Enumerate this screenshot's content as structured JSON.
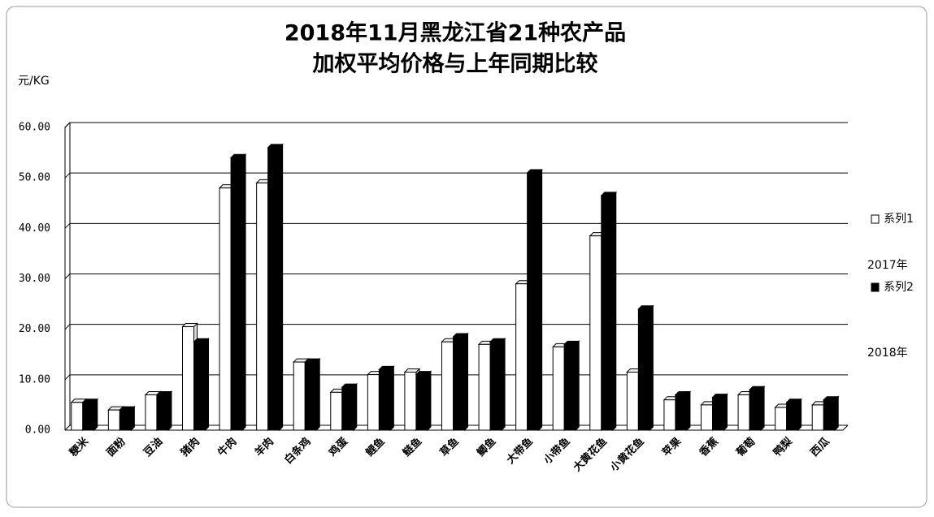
{
  "chart_data": {
    "type": "bar3d",
    "title": "2018年11月黑龙江省21种农产品",
    "subtitle": "加权平均价格与上年同期比较",
    "y_label": "元/KG",
    "categories": [
      "粳米",
      "面粉",
      "豆油",
      "猪肉",
      "牛肉",
      "羊肉",
      "白条鸡",
      "鸡蛋",
      "鲤鱼",
      "鲢鱼",
      "草鱼",
      "鲫鱼",
      "大带鱼",
      "小带鱼",
      "大黄花鱼",
      "小黄花鱼",
      "苹果",
      "香蕉",
      "葡萄",
      "鸭梨",
      "西瓜"
    ],
    "series": [
      {
        "name": "系列1",
        "color": "#ffffff",
        "values": [
          5.5,
          4,
          7,
          20.5,
          48,
          49,
          13.5,
          7.5,
          11,
          11.5,
          17.5,
          17,
          29,
          16.5,
          38.5,
          11.5,
          6,
          5,
          7,
          4.5,
          5
        ]
      },
      {
        "name": "系列2",
        "color": "#000000",
        "values": [
          5.5,
          4,
          7,
          17.5,
          54,
          56,
          13.5,
          8.5,
          12,
          11,
          18.5,
          17.5,
          51,
          17,
          46.5,
          24,
          7,
          6.5,
          8,
          5.5,
          6
        ]
      }
    ],
    "legend_notes": [
      "2017年",
      "2018年"
    ],
    "ylim": [
      0,
      60
    ],
    "yticks": [
      {
        "value": 0,
        "label": "0.00"
      },
      {
        "value": 10,
        "label": "10.00"
      },
      {
        "value": 20,
        "label": "20.00"
      },
      {
        "value": 30,
        "label": "30.00"
      },
      {
        "value": 40,
        "label": "40.00"
      },
      {
        "value": 50,
        "label": "50.00"
      },
      {
        "value": 60,
        "label": "60.00"
      }
    ],
    "grid": true,
    "legend": "right"
  }
}
